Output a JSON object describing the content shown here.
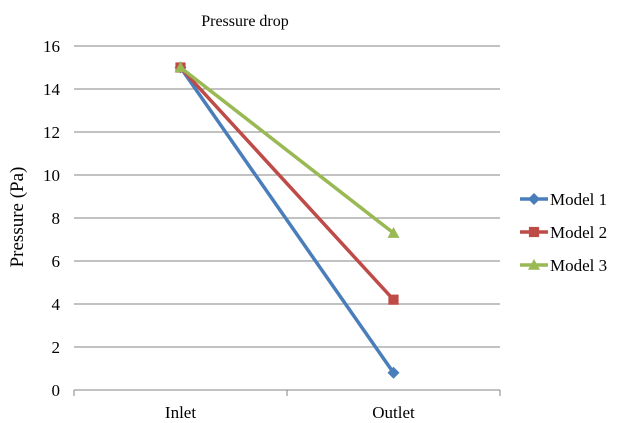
{
  "chart_data": {
    "type": "line",
    "title": "Pressure drop",
    "xlabel": "",
    "ylabel": "Pressure (Pa)",
    "categories": [
      "Inlet",
      "Outlet"
    ],
    "ylim": [
      0,
      16
    ],
    "yticks": [
      0,
      2,
      4,
      6,
      8,
      10,
      12,
      14,
      16
    ],
    "grid": true,
    "legend_position": "right",
    "series": [
      {
        "name": "Model 1",
        "values": [
          15,
          0.8
        ],
        "color": "#4a7ebb",
        "marker": "diamond"
      },
      {
        "name": "Model 2",
        "values": [
          15,
          4.2
        ],
        "color": "#be4b48",
        "marker": "square"
      },
      {
        "name": "Model 3",
        "values": [
          15,
          7.3
        ],
        "color": "#98b954",
        "marker": "triangle"
      }
    ]
  }
}
